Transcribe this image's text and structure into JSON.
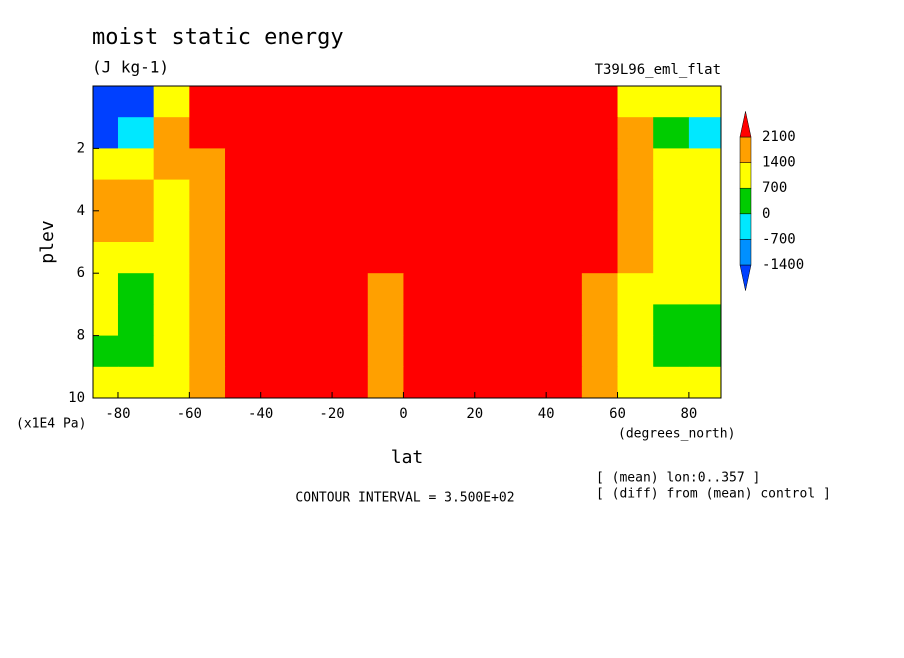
{
  "chart_data": {
    "type": "contour",
    "title": "moist static energy",
    "subtitle": "(J kg-1)",
    "dataset": "T39L96_eml_flat",
    "xlabel": "lat",
    "ylabel": "plev",
    "x_units": "(degrees_north)",
    "y_units": "(x1E4 Pa)",
    "notes": [
      "[ (mean) lon:0..357 ]",
      "[ (diff) from (mean) control ]"
    ],
    "contour_interval": "CONTOUR INTERVAL = 3.500E+02",
    "xlim": [
      -87,
      89
    ],
    "ylim": [
      10,
      0
    ],
    "xticks": [
      -80,
      -60,
      -40,
      -20,
      0,
      20,
      40,
      60,
      80
    ],
    "yticks": [
      2,
      4,
      6,
      8,
      10
    ],
    "x": [
      -85,
      -75,
      -65,
      -55,
      -45,
      -35,
      -25,
      -15,
      -5,
      5,
      15,
      25,
      35,
      45,
      55,
      65,
      75,
      85
    ],
    "y": [
      0.5,
      1.5,
      2.5,
      3.5,
      4.5,
      5.5,
      6.5,
      7.5,
      8.5,
      9.5
    ],
    "z": [
      [
        -2000,
        -1600,
        1000,
        3000,
        3500,
        4000,
        4000,
        4000,
        4000,
        4000,
        4000,
        4000,
        3500,
        2500,
        3000,
        1000,
        1000,
        1200
      ],
      [
        -1500,
        -500,
        1600,
        3000,
        3500,
        4000,
        4000,
        4000,
        4000,
        4000,
        4000,
        4000,
        3500,
        2600,
        2400,
        1600,
        300,
        -300
      ],
      [
        1000,
        1200,
        1600,
        1900,
        3000,
        6000,
        6000,
        6000,
        4000,
        4000,
        6000,
        6000,
        6000,
        3000,
        2400,
        1600,
        700,
        800
      ],
      [
        1600,
        1700,
        1300,
        1800,
        2800,
        7000,
        7000,
        6000,
        3500,
        3500,
        6000,
        7000,
        7000,
        2800,
        2300,
        1600,
        1000,
        1000
      ],
      [
        1700,
        1500,
        1200,
        1800,
        2800,
        7000,
        7000,
        6000,
        3500,
        3500,
        6000,
        7000,
        7000,
        2800,
        2200,
        1500,
        1100,
        1100
      ],
      [
        1000,
        1100,
        1300,
        1700,
        2600,
        7000,
        7000,
        5000,
        3000,
        3000,
        5000,
        7000,
        7000,
        2800,
        2200,
        1500,
        900,
        900
      ],
      [
        900,
        600,
        1100,
        1600,
        2600,
        7000,
        7000,
        4000,
        1900,
        2500,
        4000,
        7000,
        7000,
        2800,
        2000,
        1300,
        900,
        800
      ],
      [
        700,
        300,
        900,
        1500,
        2600,
        7000,
        7000,
        4000,
        1800,
        2500,
        4000,
        7000,
        7000,
        2800,
        1900,
        1100,
        400,
        500
      ],
      [
        500,
        200,
        900,
        1500,
        2600,
        7000,
        7000,
        4000,
        1800,
        2500,
        4000,
        7000,
        7000,
        2800,
        1800,
        900,
        300,
        300
      ],
      [
        1000,
        900,
        1100,
        1600,
        2600,
        7000,
        7000,
        4000,
        1900,
        2500,
        4000,
        7000,
        7000,
        2800,
        1900,
        1000,
        800,
        900
      ]
    ],
    "levels": [
      -1400,
      -700,
      0,
      700,
      1400,
      2100
    ],
    "colors": [
      "#0040ff",
      "#0090ff",
      "#00e8ff",
      "#00cc00",
      "#ffff00",
      "#ffa000",
      "#ff0000"
    ]
  }
}
